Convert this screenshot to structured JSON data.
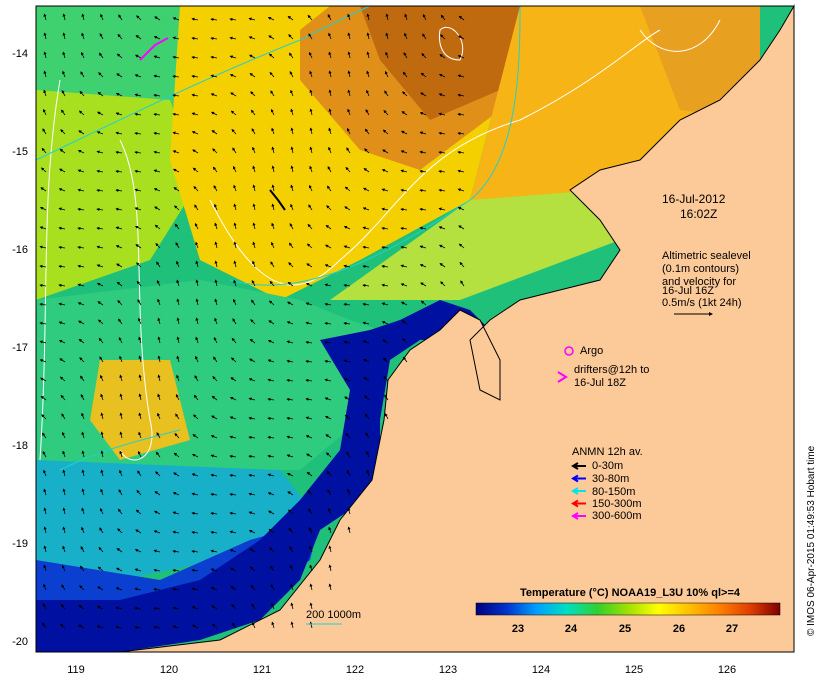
{
  "map": {
    "lon_ticks": [
      "119",
      "120",
      "121",
      "122",
      "123",
      "124",
      "125",
      "126"
    ],
    "lat_ticks": [
      "-14",
      "-15",
      "-16",
      "-17",
      "-18",
      "-19",
      "-20"
    ],
    "timestamp": {
      "date": "16-Jul-2012",
      "time": "16:02Z"
    },
    "altimetry_note": [
      "Altimetric sealevel",
      "(0.1m contours)",
      "and velocity for",
      "16-Jul 16Z",
      "0.5m/s (1kt 24h)"
    ],
    "argo_label": "Argo",
    "drifters_label": [
      "drifters@12h to",
      "16-Jul 18Z"
    ],
    "anmn": {
      "title": "ANMN 12h av.",
      "items": [
        {
          "label": "0-30m",
          "color": "#000000"
        },
        {
          "label": "30-80m",
          "color": "#0000ff"
        },
        {
          "label": "80-150m",
          "color": "#00e5e5"
        },
        {
          "label": "150-300m",
          "color": "#ff0000"
        },
        {
          "label": "300-600m",
          "color": "#ff00ff"
        }
      ]
    },
    "isobath_label": "200  1000m",
    "colorbar": {
      "title": "Temperature (°C) NOAA19_L3U 10% ql>=4",
      "ticks": [
        "23",
        "24",
        "25",
        "26",
        "27"
      ],
      "colors": [
        "#00007f",
        "#0033cc",
        "#00a0ff",
        "#00e0c0",
        "#30d030",
        "#a0e000",
        "#ffff00",
        "#ffc000",
        "#ff8000",
        "#e04000",
        "#7f0000"
      ]
    },
    "credit": "© IMOS 06-Apr-2015 01:49:53 Hobart time",
    "palette": {
      "land": "#fcc999",
      "deep_blue": "#00007f",
      "argo": "#ff00ff"
    }
  }
}
